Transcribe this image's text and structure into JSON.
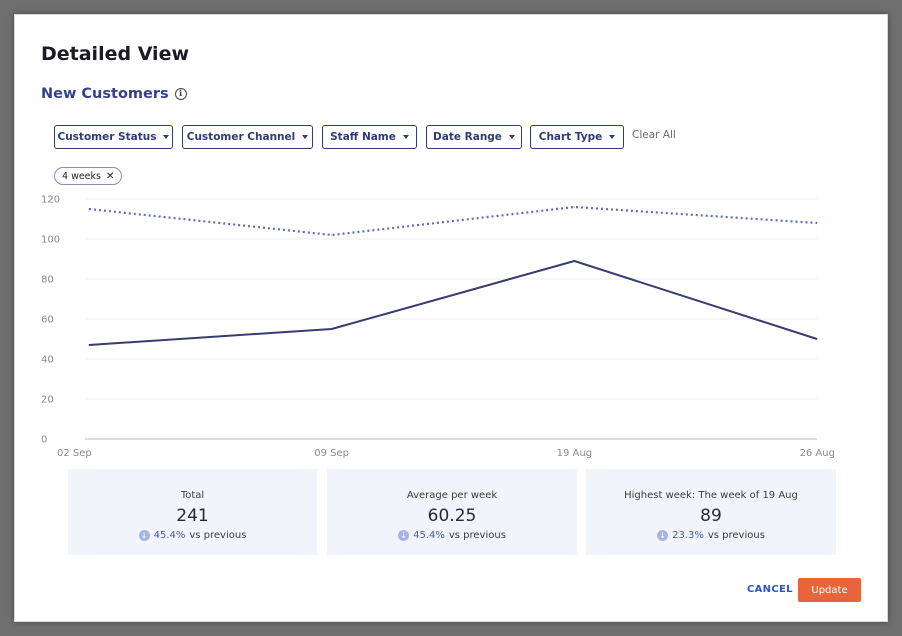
{
  "modal": {
    "title": "Detailed View",
    "section_title": "New Customers",
    "info_icon_glyph": "i"
  },
  "filters": [
    {
      "label": "Customer Status"
    },
    {
      "label": "Customer Channel"
    },
    {
      "label": "Staff Name"
    },
    {
      "label": "Date Range"
    },
    {
      "label": "Chart Type"
    }
  ],
  "clear_all_label": "Clear All",
  "chip": {
    "label": "4 weeks",
    "remove_glyph": "✕"
  },
  "chart_data": {
    "type": "line",
    "categories": [
      "02 Sep",
      "09 Sep",
      "19 Aug",
      "26 Aug"
    ],
    "series": [
      {
        "values": [
          47,
          55,
          89,
          50
        ],
        "style": "solid",
        "color": "#363e70"
      },
      {
        "values": [
          115,
          102,
          116,
          108
        ],
        "style": "dotted",
        "color": "#5d6cc4"
      }
    ],
    "y_ticks": [
      0,
      20,
      40,
      60,
      80,
      100,
      120
    ],
    "ylim": [
      0,
      120
    ],
    "grid": true
  },
  "stats": [
    {
      "label": "Total",
      "value": "241",
      "change": "45.4%",
      "suffix": "vs previous"
    },
    {
      "label": "Average per week",
      "value": "60.25",
      "change": "45.4%",
      "suffix": "vs previous"
    },
    {
      "label": "Highest week: The week of 19 Aug",
      "value": "89",
      "change": "23.3%",
      "suffix": "vs previous"
    }
  ],
  "actions": {
    "cancel_label": "CANCEL",
    "update_label": "Update"
  },
  "colors": {
    "accent": "#34408a",
    "update_button": "#e8643a",
    "cancel_text": "#2f56c4"
  }
}
